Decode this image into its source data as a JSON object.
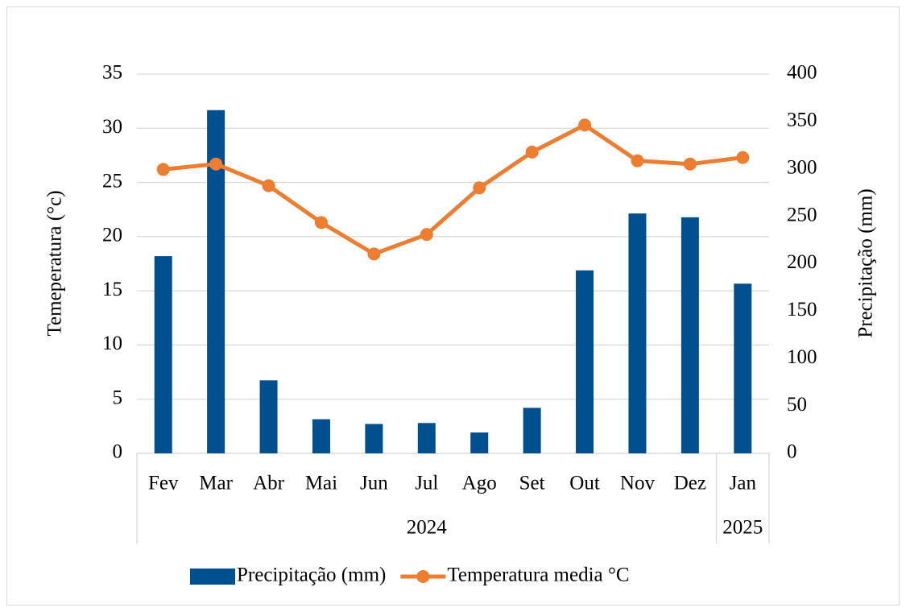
{
  "chart_data": {
    "type": "bar-line",
    "categories": [
      "Fev",
      "Mar",
      "Abr",
      "Mai",
      "Jun",
      "Jul",
      "Ago",
      "Set",
      "Out",
      "Nov",
      "Dez",
      "Jan"
    ],
    "groups": [
      {
        "label": "2024",
        "count": 11
      },
      {
        "label": "2025",
        "count": 1
      }
    ],
    "series": [
      {
        "name": "Precipitação (mm)",
        "type": "bar",
        "axis": "y2",
        "color": "#00508f",
        "values": [
          208,
          362,
          77,
          36,
          31,
          32,
          22,
          48,
          193,
          253,
          249,
          179
        ]
      },
      {
        "name": "Temperatura media °C",
        "type": "line",
        "axis": "y",
        "color": "#ed7d31",
        "values": [
          26.2,
          26.7,
          24.7,
          21.3,
          18.4,
          20.2,
          24.5,
          27.8,
          30.3,
          27.0,
          26.7,
          27.3
        ]
      }
    ],
    "ylabel": "Temeperatura (°c)",
    "y2label": "Precipitação (mm)",
    "ylim": [
      0,
      35
    ],
    "yticks": [
      0,
      5,
      10,
      15,
      20,
      25,
      30,
      35
    ],
    "y2lim": [
      0,
      400
    ],
    "y2ticks": [
      0,
      50,
      100,
      150,
      200,
      250,
      300,
      350,
      400
    ],
    "grid": true,
    "legend": "bottom"
  }
}
